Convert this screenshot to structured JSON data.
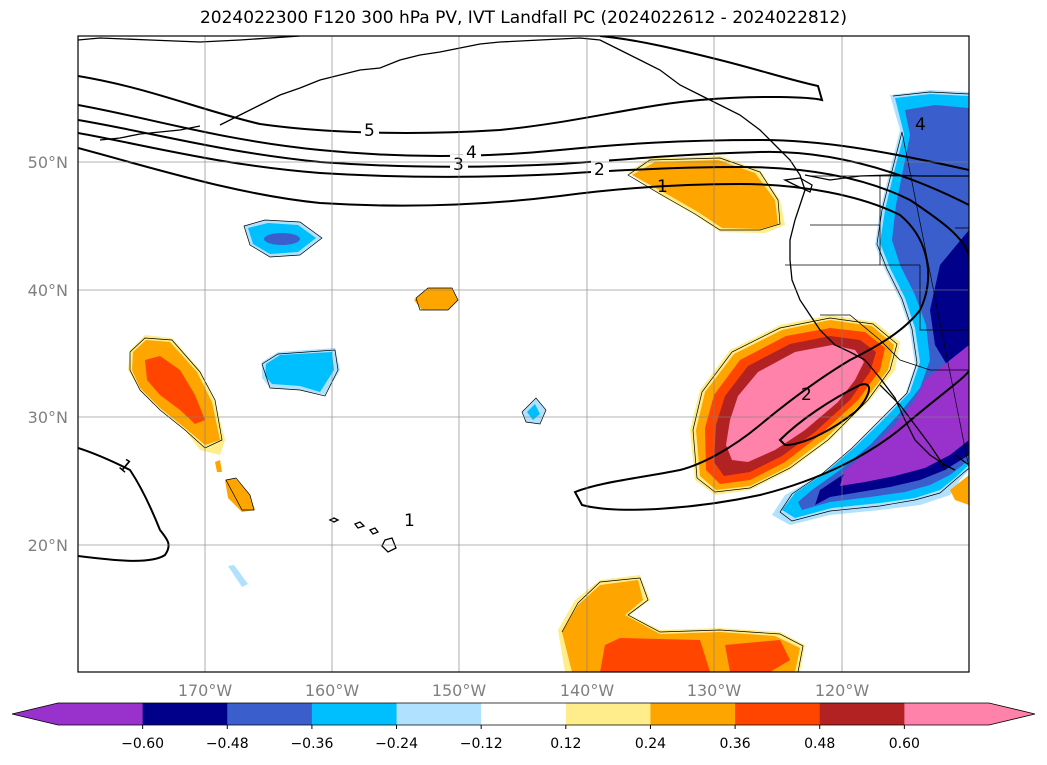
{
  "title": "2024022300 F120 300 hPa PV, IVT Landfall PC (2024022612 - 2024022812)",
  "map": {
    "projection": "PlateCarree",
    "extent": {
      "lon_min": -180,
      "lon_max": -110,
      "lat_min": 10,
      "lat_max": 60
    },
    "gridlines": true,
    "lat_labels": [
      "50°N",
      "40°N",
      "30°N",
      "20°N"
    ],
    "lon_labels": [
      "170°W",
      "160°W",
      "150°W",
      "140°W",
      "130°W",
      "120°W"
    ],
    "contour_labels": [
      "5",
      "4",
      "3",
      "2",
      "1",
      "2",
      "1",
      "1",
      "4"
    ]
  },
  "colorbar": {
    "ticks": [
      "−0.60",
      "−0.48",
      "−0.36",
      "−0.24",
      "−0.12",
      "0.12",
      "0.24",
      "0.36",
      "0.48",
      "0.60"
    ],
    "colors": [
      "#9932cc",
      "#00008b",
      "#3a5fcd",
      "#00bfff",
      "#b0e2ff",
      "#ffffff",
      "#ffec8b",
      "#ffa500",
      "#ff4500",
      "#b22222",
      "#ff82ab"
    ],
    "extend": "both"
  }
}
